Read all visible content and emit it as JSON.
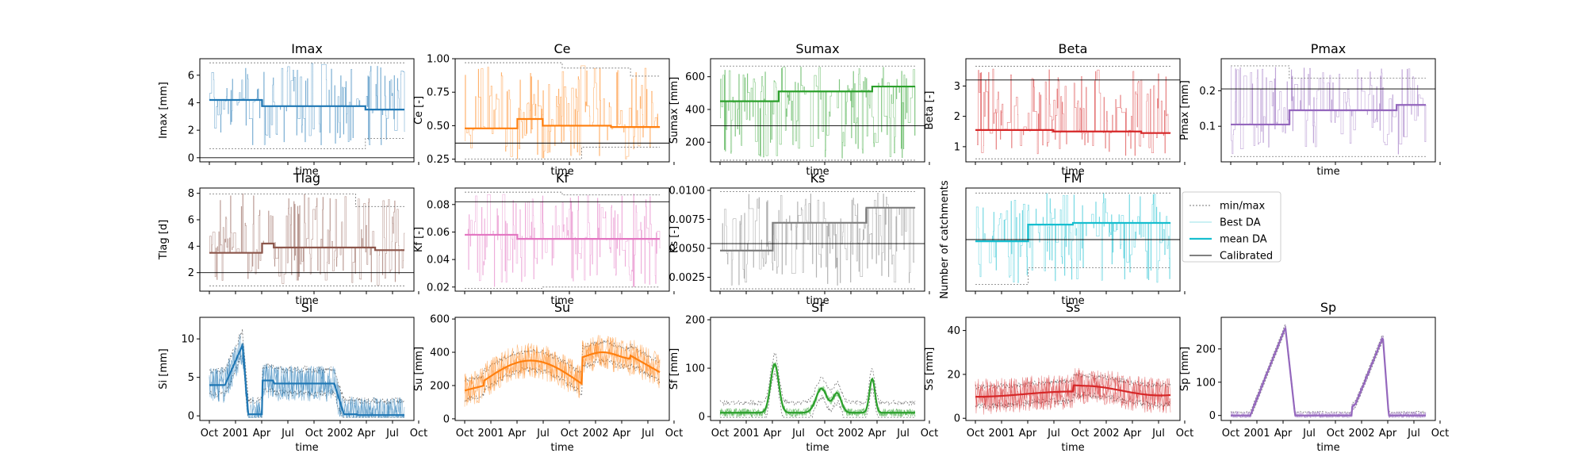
{
  "chart_data": {
    "type": "line",
    "x_ticks": [
      "Oct",
      "2001",
      "Apr",
      "Jul",
      "Oct",
      "2002",
      "Apr",
      "Jul",
      "Oct"
    ],
    "xlabel": "time",
    "legend": {
      "placement": "right",
      "entries": [
        {
          "label": "min/max",
          "style": "dashed-gray"
        },
        {
          "label": "Best DA",
          "style": "thin-color"
        },
        {
          "label": "mean DA",
          "style": "thick-color"
        },
        {
          "label": "Calibrated",
          "style": "black"
        }
      ],
      "ylabel": "Number of catchments"
    },
    "panels": [
      {
        "id": "imax",
        "title": "Imax",
        "ylabel": "Imax [mm]",
        "color": "#1f77b4",
        "ylim": [
          -0.3,
          7.2
        ],
        "yticks": [
          "0",
          "2",
          "4",
          "6"
        ],
        "ytick_values": [
          0,
          2,
          4,
          6
        ],
        "mean_steps": [
          [
            0,
            4.2
          ],
          [
            0.27,
            3.75
          ],
          [
            0.8,
            3.5
          ]
        ],
        "calibrated": 0,
        "max_steps": [
          [
            0,
            6.9
          ]
        ],
        "min_steps": [
          [
            0,
            0.65
          ],
          [
            0.8,
            1.4
          ]
        ],
        "noise": [
          0.9,
          6.9
        ],
        "show_xticks": false,
        "show_xlabel": true
      },
      {
        "id": "ce",
        "title": "Ce",
        "ylabel": "Ce [-]",
        "color": "#ff7f0e",
        "ylim": [
          0.23,
          1.0
        ],
        "yticks": [
          "0.25",
          "0.50",
          "0.75",
          "1.00"
        ],
        "ytick_values": [
          0.25,
          0.5,
          0.75,
          1.0
        ],
        "mean_steps": [
          [
            0,
            0.48
          ],
          [
            0.27,
            0.55
          ],
          [
            0.4,
            0.5
          ],
          [
            0.75,
            0.49
          ]
        ],
        "calibrated": 0.37,
        "max_steps": [
          [
            0,
            0.97
          ],
          [
            0.5,
            0.93
          ],
          [
            0.85,
            0.87
          ]
        ],
        "min_steps": [
          [
            0,
            0.25
          ],
          [
            0.6,
            0.34
          ]
        ],
        "noise": [
          0.25,
          0.95
        ],
        "show_xticks": false,
        "show_xlabel": true
      },
      {
        "id": "sumax",
        "title": "Sumax",
        "ylabel": "Sumax [mm]",
        "color": "#2ca02c",
        "ylim": [
          80,
          710
        ],
        "yticks": [
          "200",
          "400",
          "600"
        ],
        "ytick_values": [
          200,
          400,
          600
        ],
        "mean_steps": [
          [
            0,
            450
          ],
          [
            0.3,
            510
          ],
          [
            0.78,
            540
          ]
        ],
        "calibrated": 300,
        "max_steps": [
          [
            0,
            665
          ]
        ],
        "min_steps": [
          [
            0,
            90
          ]
        ],
        "noise": [
          100,
          660
        ],
        "show_xticks": false,
        "show_xlabel": true
      },
      {
        "id": "beta",
        "title": "Beta",
        "ylabel": "Beta [-]",
        "color": "#d62728",
        "ylim": [
          0.5,
          3.9
        ],
        "yticks": [
          "1",
          "2",
          "3"
        ],
        "ytick_values": [
          1,
          2,
          3
        ],
        "mean_steps": [
          [
            0,
            1.55
          ],
          [
            0.4,
            1.5
          ],
          [
            0.85,
            1.45
          ]
        ],
        "calibrated": 3.2,
        "max_steps": [
          [
            0,
            3.65
          ]
        ],
        "min_steps": [
          [
            0,
            0.6
          ]
        ],
        "noise": [
          0.7,
          3.6
        ],
        "show_xticks": false,
        "show_xlabel": true
      },
      {
        "id": "pmax",
        "title": "Pmax",
        "ylabel": "Pmax [mm]",
        "color": "#9467bd",
        "ylim": [
          0.0,
          0.29
        ],
        "yticks": [
          "0.1",
          "0.2"
        ],
        "ytick_values": [
          0.1,
          0.2
        ],
        "mean_steps": [
          [
            0,
            0.105
          ],
          [
            0.3,
            0.145
          ],
          [
            0.85,
            0.16
          ]
        ],
        "calibrated": 0.205,
        "max_steps": [
          [
            0,
            0.27
          ],
          [
            0.3,
            0.235
          ]
        ],
        "min_steps": [
          [
            0,
            0.015
          ]
        ],
        "noise": [
          0.02,
          0.27
        ],
        "show_xticks": false,
        "show_xlabel": true
      },
      {
        "id": "tlag",
        "title": "Tlag",
        "ylabel": "Tlag [d]",
        "color": "#8c564b",
        "ylim": [
          0.6,
          8.4
        ],
        "yticks": [
          "2",
          "4",
          "6",
          "8"
        ],
        "ytick_values": [
          2,
          4,
          6,
          8
        ],
        "mean_steps": [
          [
            0,
            3.5
          ],
          [
            0.27,
            4.2
          ],
          [
            0.33,
            3.9
          ],
          [
            0.85,
            3.7
          ]
        ],
        "calibrated": 2.0,
        "max_steps": [
          [
            0,
            7.95
          ],
          [
            0.75,
            7.0
          ]
        ],
        "min_steps": [
          [
            0,
            1.0
          ]
        ],
        "noise": [
          1.0,
          8.0
        ],
        "show_xticks": false,
        "show_xlabel": true
      },
      {
        "id": "kf",
        "title": "Kf",
        "ylabel": "Kf [-]",
        "color": "#e377c2",
        "ylim": [
          0.017,
          0.092
        ],
        "yticks": [
          "0.02",
          "0.04",
          "0.06",
          "0.08"
        ],
        "ytick_values": [
          0.02,
          0.04,
          0.06,
          0.08
        ],
        "mean_steps": [
          [
            0,
            0.058
          ],
          [
            0.27,
            0.055
          ]
        ],
        "calibrated": 0.082,
        "max_steps": [
          [
            0,
            0.089
          ],
          [
            0.5,
            0.087
          ]
        ],
        "min_steps": [
          [
            0,
            0.019
          ],
          [
            0.4,
            0.02
          ]
        ],
        "noise": [
          0.02,
          0.088
        ],
        "show_xticks": false,
        "show_xlabel": true
      },
      {
        "id": "ks",
        "title": "Ks",
        "ylabel": "Ks [-]",
        "color": "#7f7f7f",
        "ylim": [
          0.0013,
          0.0102
        ],
        "yticks": [
          "0.0025",
          "0.0050",
          "0.0075",
          "0.0100"
        ],
        "ytick_values": [
          0.0025,
          0.005,
          0.0075,
          0.01
        ],
        "mean_steps": [
          [
            0,
            0.0048
          ],
          [
            0.27,
            0.0072
          ],
          [
            0.75,
            0.0085
          ]
        ],
        "calibrated": 0.0054,
        "max_steps": [
          [
            0,
            0.0099
          ]
        ],
        "min_steps": [
          [
            0,
            0.0015
          ]
        ],
        "noise": [
          0.0018,
          0.0099
        ],
        "show_xticks": false,
        "show_xlabel": true
      },
      {
        "id": "fm",
        "title": "FM",
        "ylabel": "",
        "color": "#17becf",
        "ylim": [
          0.0,
          6.2
        ],
        "yticks": [],
        "ytick_values": [],
        "mean_steps": [
          [
            0,
            3.0
          ],
          [
            0.27,
            4.0
          ],
          [
            0.5,
            4.1
          ]
        ],
        "calibrated": 3.1,
        "max_steps": [
          [
            0,
            5.9
          ]
        ],
        "min_steps": [
          [
            0,
            0.4
          ],
          [
            0.27,
            1.4
          ]
        ],
        "noise": [
          0.5,
          5.9
        ],
        "show_xticks": false,
        "show_xlabel": true
      },
      {
        "id": "si",
        "title": "Si",
        "ylabel": "Si [mm]",
        "color": "#1f77b4",
        "ylim": [
          -0.6,
          12.8
        ],
        "yticks": [
          "0",
          "5",
          "10"
        ],
        "ytick_values": [
          0,
          5,
          10
        ],
        "state": "si",
        "calibrated": null,
        "show_xticks": true,
        "show_xlabel": true
      },
      {
        "id": "su",
        "title": "Su",
        "ylabel": "Su [mm]",
        "color": "#ff7f0e",
        "ylim": [
          -10,
          610
        ],
        "yticks": [
          "0",
          "200",
          "400",
          "600"
        ],
        "ytick_values": [
          0,
          200,
          400,
          600
        ],
        "state": "su",
        "calibrated": null,
        "show_xticks": true,
        "show_xlabel": true
      },
      {
        "id": "sf",
        "title": "Sf",
        "ylabel": "Sf [mm]",
        "color": "#2ca02c",
        "ylim": [
          -8,
          205
        ],
        "yticks": [
          "0",
          "100",
          "200"
        ],
        "ytick_values": [
          0,
          100,
          200
        ],
        "state": "sf",
        "calibrated": null,
        "show_xticks": true,
        "show_xlabel": true
      },
      {
        "id": "ss",
        "title": "Ss",
        "ylabel": "Ss [mm]",
        "color": "#d62728",
        "ylim": [
          -1,
          46
        ],
        "yticks": [
          "0",
          "20",
          "40"
        ],
        "ytick_values": [
          0,
          20,
          40
        ],
        "state": "ss",
        "calibrated": null,
        "show_xticks": true,
        "show_xlabel": true
      },
      {
        "id": "sp",
        "title": "Sp",
        "ylabel": "Sp [mm]",
        "color": "#9467bd",
        "ylim": [
          -15,
          295
        ],
        "yticks": [
          "0",
          "100",
          "200"
        ],
        "ytick_values": [
          0,
          100,
          200
        ],
        "state": "sp",
        "calibrated": null,
        "show_xticks": true,
        "show_xlabel": true
      }
    ]
  }
}
